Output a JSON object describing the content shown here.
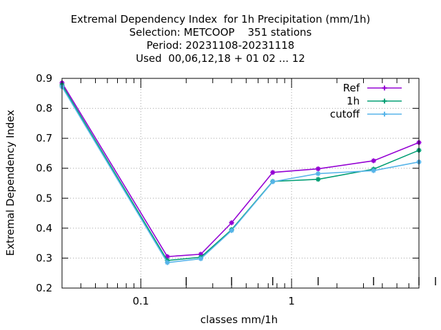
{
  "chart_data": {
    "type": "line",
    "title_lines": [
      "Extremal Dependency Index  for 1h Precipitation (mm/1h)",
      "Selection: METCOOP    351 stations",
      "Period: 20231108-20231118",
      "Used  00,06,12,18 + 01 02 ... 12"
    ],
    "xlabel": "classes mm/1h",
    "ylabel": "Extremal Dependency Index",
    "x_scale": "log",
    "xlim": [
      0.03,
      7.0
    ],
    "ylim": [
      0.2,
      0.9
    ],
    "x_tick_labels": [
      "0.1",
      "1"
    ],
    "x_tick_values": [
      0.1,
      1
    ],
    "y_tick_labels": [
      "0.2",
      "0.3",
      "0.4",
      "0.5",
      "0.6",
      "0.7",
      "0.8",
      "0.9"
    ],
    "y_tick_values": [
      0.2,
      0.3,
      0.4,
      0.5,
      0.6,
      0.7,
      0.8,
      0.9
    ],
    "grid": true,
    "legend_position": "top-right",
    "x": [
      0.03,
      0.15,
      0.25,
      0.4,
      0.75,
      1.5,
      3.5,
      7.0
    ],
    "series": [
      {
        "name": "Ref",
        "color": "#9400d3",
        "values": [
          0.885,
          0.305,
          0.313,
          0.418,
          0.586,
          0.598,
          0.625,
          0.686
        ]
      },
      {
        "name": "1h",
        "color": "#009e73",
        "values": [
          0.878,
          0.292,
          0.303,
          0.395,
          0.556,
          0.563,
          0.597,
          0.66
        ]
      },
      {
        "name": "cutoff",
        "color": "#56b4e9",
        "values": [
          0.872,
          0.285,
          0.298,
          0.392,
          0.555,
          0.582,
          0.592,
          0.621
        ]
      }
    ]
  }
}
